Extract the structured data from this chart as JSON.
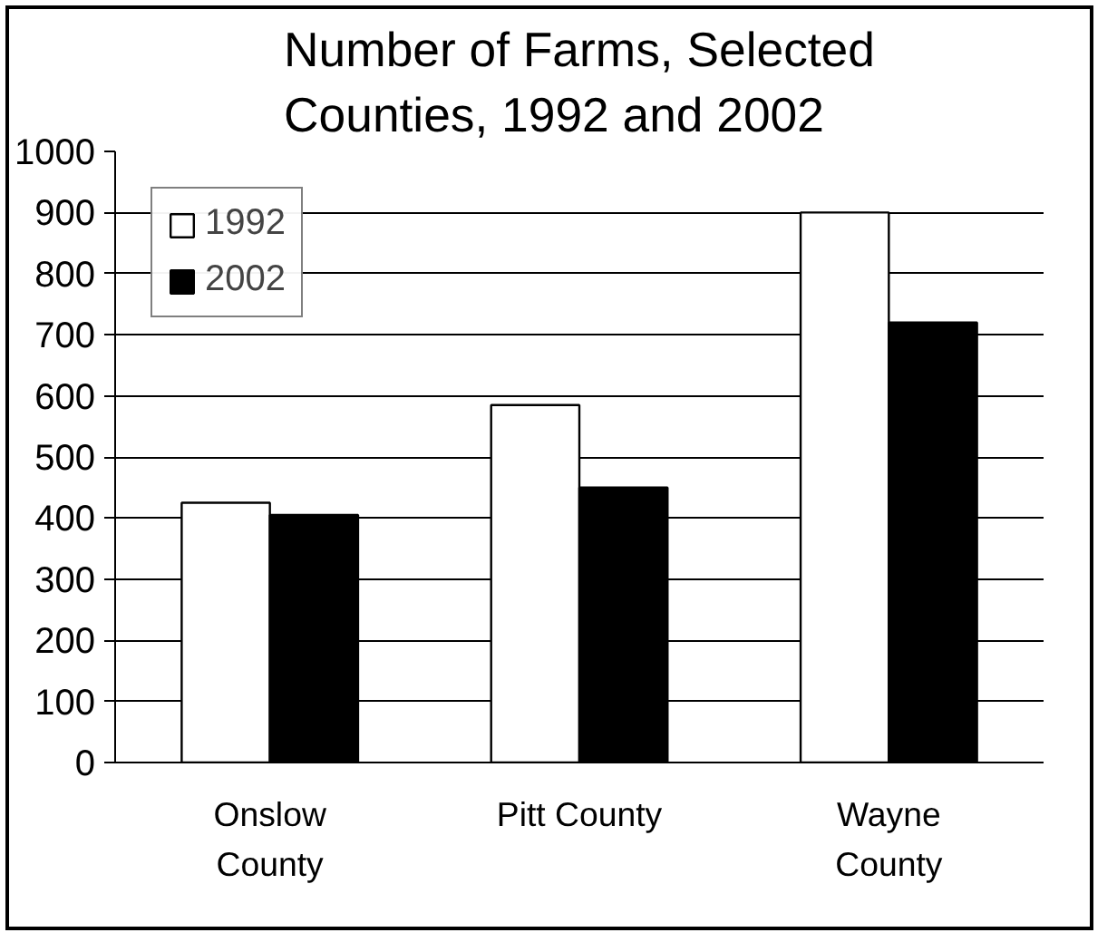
{
  "chart_data": {
    "type": "bar",
    "title": "Number of Farms, Selected\nCounties, 1992 and 2002",
    "categories": [
      "Onslow\nCounty",
      "Pitt County",
      "Wayne\nCounty"
    ],
    "series": [
      {
        "name": "1992",
        "color": "#ffffff",
        "values": [
          425,
          585,
          900
        ]
      },
      {
        "name": "2002",
        "color": "#000000",
        "values": [
          405,
          450,
          720
        ]
      }
    ],
    "ylim": [
      0,
      1000
    ],
    "yticks": [
      0,
      100,
      200,
      300,
      400,
      500,
      600,
      700,
      800,
      900,
      1000
    ],
    "grid": "y",
    "legend": "top left"
  }
}
